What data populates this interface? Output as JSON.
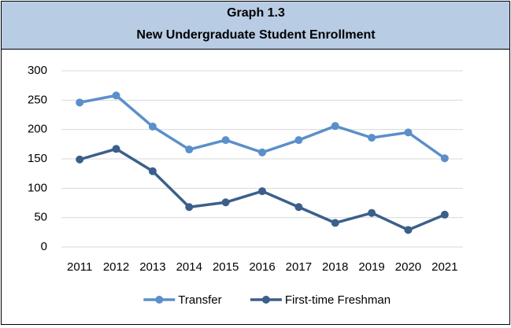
{
  "chart_data": {
    "type": "line",
    "title": "Graph 1.3",
    "subtitle": "New Undergraduate Student Enrollment",
    "categories": [
      "2011",
      "2012",
      "2013",
      "2014",
      "2015",
      "2016",
      "2017",
      "2018",
      "2019",
      "2020",
      "2021"
    ],
    "series": [
      {
        "name": "Transfer",
        "color": "#5b8fca",
        "values": [
          246,
          258,
          205,
          166,
          182,
          161,
          182,
          206,
          186,
          195,
          151
        ]
      },
      {
        "name": "First-time Freshman",
        "color": "#3b5f8b",
        "values": [
          149,
          167,
          129,
          68,
          76,
          95,
          68,
          41,
          58,
          29,
          55
        ]
      }
    ],
    "ylim": [
      0,
      300
    ],
    "yticks": [
      0,
      50,
      100,
      150,
      200,
      250,
      300
    ],
    "grid": true,
    "legend": "bottom"
  }
}
